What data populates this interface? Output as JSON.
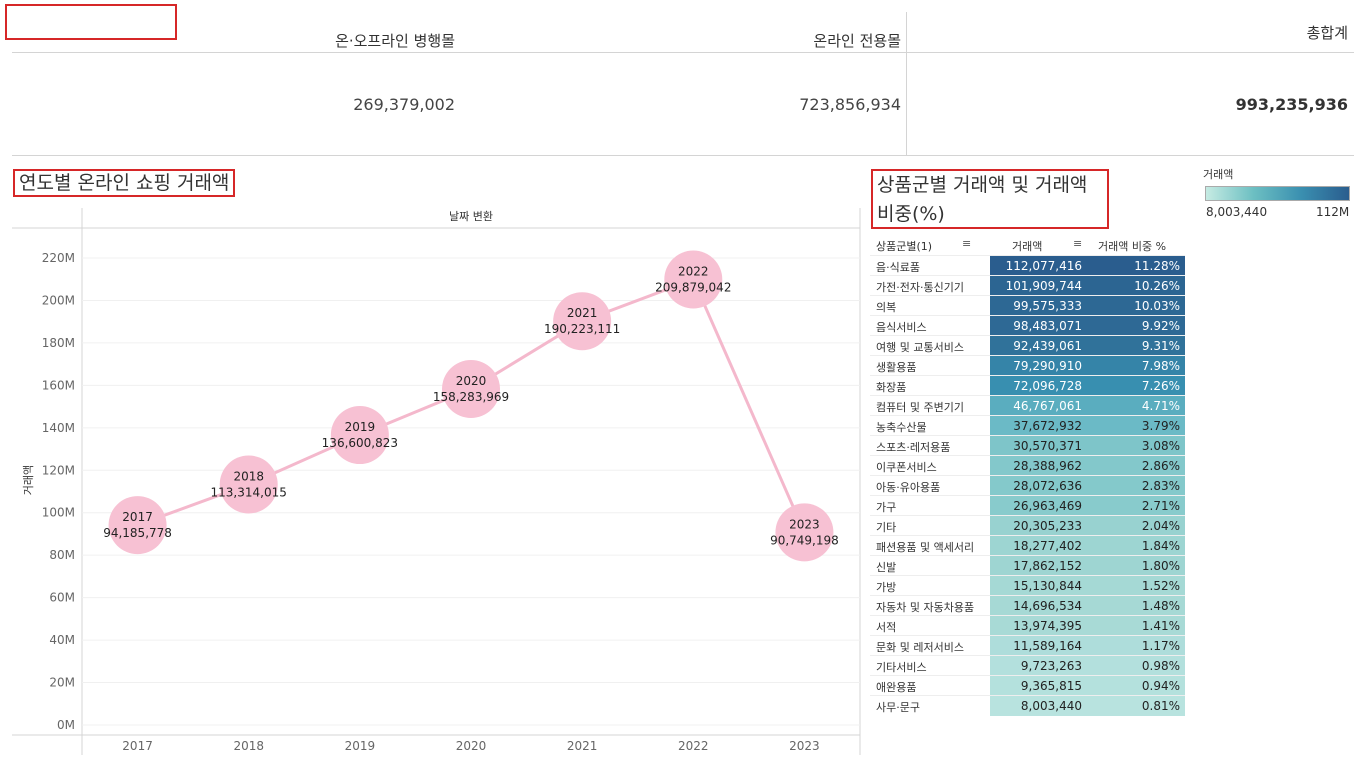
{
  "summary": {
    "headers": [
      "온·오프라인 병행몰",
      "온라인 전용몰",
      "총합계"
    ],
    "values": [
      "269,379,002",
      "723,856,934",
      "993,235,936"
    ]
  },
  "line_chart": {
    "title": "연도별 온라인 쇼핑 거래액",
    "column_header": "날짜 변환",
    "y_axis_label": "거래액",
    "y_ticks": [
      "0M",
      "20M",
      "40M",
      "60M",
      "80M",
      "100M",
      "120M",
      "140M",
      "160M",
      "180M",
      "200M",
      "220M"
    ],
    "points": [
      {
        "year": "2017",
        "label": "94,185,778"
      },
      {
        "year": "2018",
        "label": "113,314,015"
      },
      {
        "year": "2019",
        "label": "136,600,823"
      },
      {
        "year": "2020",
        "label": "158,283,969"
      },
      {
        "year": "2021",
        "label": "190,223,111"
      },
      {
        "year": "2022",
        "label": "209,879,042"
      },
      {
        "year": "2023",
        "label": "90,749,198"
      }
    ]
  },
  "table": {
    "title": "상품군별 거래액 및 거래액 비중(%)",
    "headers": [
      "상품군별(1)",
      "거래액",
      "거래액 비중 %"
    ],
    "rows": [
      {
        "category": "음·식료품",
        "amount": "112,077,416",
        "share": "11.28%",
        "color": "#2a5d8e",
        "text_color": "#ffffff"
      },
      {
        "category": "가전·전자·통신기기",
        "amount": "101,909,744",
        "share": "10.26%",
        "color": "#2c6592",
        "text_color": "#ffffff"
      },
      {
        "category": "의복",
        "amount": "99,575,333",
        "share": "10.03%",
        "color": "#2d6894",
        "text_color": "#ffffff"
      },
      {
        "category": "음식서비스",
        "amount": "98,483,071",
        "share": "9.92%",
        "color": "#2e6995",
        "text_color": "#ffffff"
      },
      {
        "category": "여행 및 교통서비스",
        "amount": "92,439,061",
        "share": "9.31%",
        "color": "#30729a",
        "text_color": "#ffffff"
      },
      {
        "category": "생활용품",
        "amount": "79,290,910",
        "share": "7.98%",
        "color": "#3584a8",
        "text_color": "#ffffff"
      },
      {
        "category": "화장품",
        "amount": "72,096,728",
        "share": "7.26%",
        "color": "#388fb0",
        "text_color": "#ffffff"
      },
      {
        "category": "컴퓨터 및 주변기기",
        "amount": "46,767,061",
        "share": "4.71%",
        "color": "#5aadbf",
        "text_color": "#ffffff"
      },
      {
        "category": "농축수산물",
        "amount": "37,672,932",
        "share": "3.79%",
        "color": "#6bbac6",
        "text_color": "#222222"
      },
      {
        "category": "스포츠·레저용품",
        "amount": "30,570,371",
        "share": "3.08%",
        "color": "#7ec5c9",
        "text_color": "#222222"
      },
      {
        "category": "이쿠폰서비스",
        "amount": "28,388,962",
        "share": "2.86%",
        "color": "#83c8cb",
        "text_color": "#222222"
      },
      {
        "category": "아동·유아용품",
        "amount": "28,072,636",
        "share": "2.83%",
        "color": "#84c9cb",
        "text_color": "#222222"
      },
      {
        "category": "가구",
        "amount": "26,963,469",
        "share": "2.71%",
        "color": "#88cbcc",
        "text_color": "#222222"
      },
      {
        "category": "기타",
        "amount": "20,305,233",
        "share": "2.04%",
        "color": "#98d2d0",
        "text_color": "#222222"
      },
      {
        "category": "패션용품 및 액세서리",
        "amount": "18,277,402",
        "share": "1.84%",
        "color": "#9dd5d2",
        "text_color": "#222222"
      },
      {
        "category": "신발",
        "amount": "17,862,152",
        "share": "1.80%",
        "color": "#9ed5d2",
        "text_color": "#222222"
      },
      {
        "category": "가방",
        "amount": "15,130,844",
        "share": "1.52%",
        "color": "#a5d9d5",
        "text_color": "#222222"
      },
      {
        "category": "자동차 및 자동차용품",
        "amount": "14,696,534",
        "share": "1.48%",
        "color": "#a6d9d5",
        "text_color": "#222222"
      },
      {
        "category": "서적",
        "amount": "13,974,395",
        "share": "1.41%",
        "color": "#a8dad6",
        "text_color": "#222222"
      },
      {
        "category": "문화 및 레저서비스",
        "amount": "11,589,164",
        "share": "1.17%",
        "color": "#aedddb",
        "text_color": "#222222"
      },
      {
        "category": "기타서비스",
        "amount": "9,723,263",
        "share": "0.98%",
        "color": "#b3e0dd",
        "text_color": "#222222"
      },
      {
        "category": "애완용품",
        "amount": "9,365,815",
        "share": "0.94%",
        "color": "#b4e1dd",
        "text_color": "#222222"
      },
      {
        "category": "사무·문구",
        "amount": "8,003,440",
        "share": "0.81%",
        "color": "#b8e3df",
        "text_color": "#222222"
      }
    ]
  },
  "legend": {
    "title": "거래액",
    "min_label": "8,003,440",
    "max_label": "112M"
  },
  "colors": {
    "line": "#f4b8cc",
    "bubble": "#f7c1d3",
    "accent_box": "#d62728"
  },
  "chart_data": [
    {
      "type": "line",
      "title": "연도별 온라인 쇼핑 거래액",
      "xlabel": "날짜 변환",
      "ylabel": "거래액",
      "x": [
        "2017",
        "2018",
        "2019",
        "2020",
        "2021",
        "2022",
        "2023"
      ],
      "values": [
        94185778,
        113314015,
        136600823,
        158283969,
        190223111,
        209879042,
        90749198
      ],
      "ylim": [
        0,
        230000000
      ],
      "grid": true
    },
    {
      "type": "table",
      "title": "상품군별 거래액 및 거래액 비중(%)",
      "categories": [
        "음·식료품",
        "가전·전자·통신기기",
        "의복",
        "음식서비스",
        "여행 및 교통서비스",
        "생활용품",
        "화장품",
        "컴퓨터 및 주변기기",
        "농축수산물",
        "스포츠·레저용품",
        "이쿠폰서비스",
        "아동·유아용품",
        "가구",
        "기타",
        "패션용품 및 액세서리",
        "신발",
        "가방",
        "자동차 및 자동차용품",
        "서적",
        "문화 및 레저서비스",
        "기타서비스",
        "애완용품",
        "사무·문구"
      ],
      "values": [
        112077416,
        101909744,
        99575333,
        98483071,
        92439061,
        79290910,
        72096728,
        46767061,
        37672932,
        30570371,
        28388962,
        28072636,
        26963469,
        20305233,
        18277402,
        17862152,
        15130844,
        14696534,
        13974395,
        11589164,
        9723263,
        9365815,
        8003440
      ],
      "shares": [
        11.28,
        10.26,
        10.03,
        9.92,
        9.31,
        7.98,
        7.26,
        4.71,
        3.79,
        3.08,
        2.86,
        2.83,
        2.71,
        2.04,
        1.84,
        1.8,
        1.52,
        1.48,
        1.41,
        1.17,
        0.98,
        0.94,
        0.81
      ]
    }
  ]
}
